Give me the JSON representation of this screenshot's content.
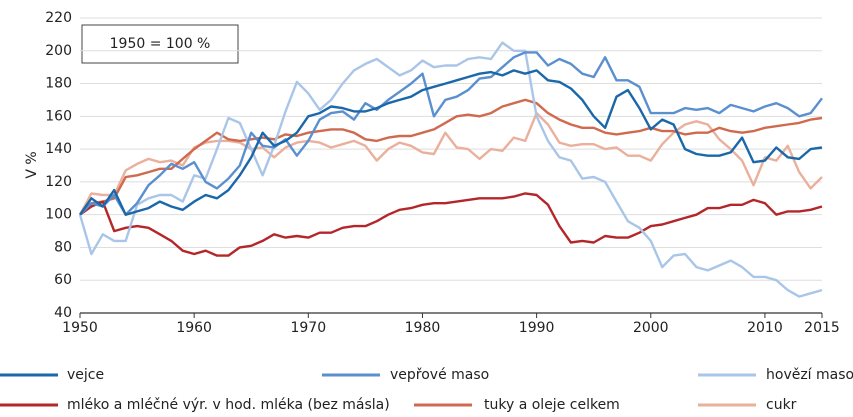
{
  "chart_data": {
    "type": "line",
    "annotation": "1950 = 100 %",
    "y_label": "V %",
    "x": [
      1950,
      1951,
      1952,
      1953,
      1954,
      1955,
      1956,
      1957,
      1958,
      1959,
      1960,
      1961,
      1962,
      1963,
      1964,
      1965,
      1966,
      1967,
      1968,
      1969,
      1970,
      1971,
      1972,
      1973,
      1974,
      1975,
      1976,
      1977,
      1978,
      1979,
      1980,
      1981,
      1982,
      1983,
      1984,
      1985,
      1986,
      1987,
      1988,
      1989,
      1990,
      1991,
      1992,
      1993,
      1994,
      1995,
      1996,
      1997,
      1998,
      1999,
      2000,
      2001,
      2002,
      2003,
      2004,
      2005,
      2006,
      2007,
      2008,
      2009,
      2010,
      2011,
      2012,
      2013,
      2014,
      2015
    ],
    "xlim": [
      1950,
      2015
    ],
    "xticks": [
      1950,
      1960,
      1970,
      1980,
      1990,
      2000,
      2010,
      2015
    ],
    "ylim": [
      40,
      220
    ],
    "yticks": [
      40,
      60,
      80,
      100,
      120,
      140,
      160,
      180,
      200,
      220
    ],
    "grid": true,
    "series": [
      {
        "name": "vejce",
        "color": "#1a67aa",
        "values": [
          100,
          110,
          105,
          115,
          100,
          102,
          104,
          108,
          105,
          103,
          108,
          112,
          110,
          115,
          124,
          135,
          150,
          142,
          145,
          150,
          160,
          162,
          166,
          165,
          163,
          163,
          165,
          168,
          170,
          172,
          176,
          178,
          180,
          182,
          184,
          186,
          187,
          185,
          188,
          186,
          188,
          182,
          181,
          177,
          170,
          160,
          153,
          172,
          176,
          165,
          152,
          158,
          155,
          140,
          137,
          136,
          136,
          138,
          147,
          132,
          133,
          141,
          135,
          134,
          140,
          141
        ]
      },
      {
        "name": "vepřové maso",
        "color": "#5a8fd0",
        "values": [
          100,
          107,
          105,
          112,
          100,
          107,
          118,
          124,
          131,
          128,
          132,
          120,
          116,
          122,
          130,
          150,
          142,
          141,
          146,
          136,
          145,
          158,
          162,
          163,
          158,
          168,
          164,
          170,
          175,
          180,
          186,
          160,
          170,
          172,
          176,
          183,
          184,
          190,
          196,
          199,
          199,
          191,
          195,
          192,
          186,
          184,
          196,
          182,
          182,
          178,
          162,
          162,
          162,
          165,
          164,
          165,
          162,
          167,
          165,
          163,
          166,
          168,
          165,
          160,
          162,
          171
        ]
      },
      {
        "name": "hovězí maso",
        "color": "#a9c6e8",
        "values": [
          100,
          76,
          88,
          84,
          84,
          106,
          110,
          112,
          112,
          108,
          124,
          122,
          140,
          159,
          156,
          140,
          124,
          142,
          163,
          181,
          174,
          164,
          170,
          180,
          188,
          192,
          195,
          190,
          185,
          188,
          194,
          190,
          191,
          191,
          195,
          196,
          195,
          205,
          200,
          200,
          160,
          145,
          135,
          133,
          122,
          123,
          120,
          108,
          96,
          92,
          84,
          68,
          75,
          76,
          68,
          66,
          69,
          72,
          68,
          62,
          62,
          60,
          54,
          50,
          52,
          54
        ]
      },
      {
        "name": "mléko a mléčné výr. v hod. mléka (bez másla)",
        "color": "#b3272a",
        "values": [
          100,
          105,
          108,
          90,
          92,
          93,
          92,
          88,
          84,
          78,
          76,
          78,
          75,
          75,
          80,
          81,
          84,
          88,
          86,
          87,
          86,
          89,
          89,
          92,
          93,
          93,
          96,
          100,
          103,
          104,
          106,
          107,
          107,
          108,
          109,
          110,
          110,
          110,
          111,
          113,
          112,
          106,
          93,
          83,
          84,
          83,
          87,
          86,
          86,
          89,
          93,
          94,
          96,
          98,
          100,
          104,
          104,
          106,
          106,
          109,
          107,
          100,
          102,
          102,
          103,
          105
        ]
      },
      {
        "name": "tuky a oleje celkem",
        "color": "#cf6a4e",
        "values": [
          100,
          107,
          108,
          110,
          123,
          124,
          126,
          128,
          128,
          134,
          140,
          145,
          150,
          146,
          145,
          146,
          147,
          146,
          149,
          148,
          150,
          151,
          152,
          152,
          150,
          146,
          145,
          147,
          148,
          148,
          150,
          152,
          156,
          160,
          161,
          160,
          162,
          166,
          168,
          170,
          168,
          162,
          158,
          155,
          153,
          153,
          150,
          149,
          150,
          151,
          153,
          151,
          151,
          149,
          150,
          150,
          153,
          151,
          150,
          151,
          153,
          154,
          155,
          156,
          158,
          159
        ]
      },
      {
        "name": "cukr",
        "color": "#eab09c",
        "values": [
          100,
          113,
          112,
          112,
          127,
          131,
          134,
          132,
          133,
          130,
          141,
          144,
          145,
          145,
          144,
          140,
          141,
          135,
          141,
          144,
          145,
          144,
          141,
          143,
          145,
          142,
          133,
          140,
          144,
          142,
          138,
          137,
          150,
          141,
          140,
          134,
          140,
          139,
          147,
          145,
          162,
          155,
          144,
          142,
          143,
          143,
          140,
          141,
          136,
          136,
          133,
          143,
          150,
          155,
          157,
          155,
          146,
          140,
          133,
          118,
          135,
          133,
          142,
          126,
          116,
          123
        ]
      }
    ]
  }
}
